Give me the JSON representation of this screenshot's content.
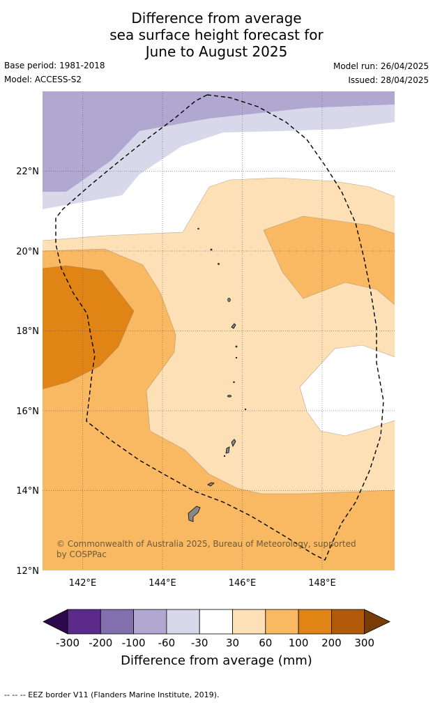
{
  "title_lines": [
    "Difference from average",
    "sea surface height forecast for",
    "June to August 2025"
  ],
  "meta": {
    "base_period": "Base period: 1981-2018",
    "model": "Model: ACCESS-S2",
    "model_run": "Model run: 26/04/2025",
    "issued": "Issued: 28/04/2025"
  },
  "map": {
    "region": "Northern Mariana Islands and Guam",
    "lon_range": [
      141,
      149.8
    ],
    "lat_range": [
      12,
      24
    ],
    "x_ticks": [
      "142°E",
      "144°E",
      "146°E",
      "148°E"
    ],
    "y_ticks": [
      "22°N",
      "20°N",
      "18°N",
      "16°N",
      "14°N",
      "12°N"
    ],
    "copyright": [
      "© Commonwealth of Australia 2025, Bureau of Meteorology, supported",
      "by COSPPac"
    ]
  },
  "colorbar": {
    "labels": [
      "-300",
      "-200",
      "-100",
      "-60",
      "-30",
      "30",
      "60",
      "100",
      "200",
      "300"
    ],
    "colors": [
      "#2d0a4e",
      "#5b2a8a",
      "#8170ad",
      "#b0a8d0",
      "#d8d8ea",
      "#ffffff",
      "#fde0b5",
      "#f9b862",
      "#e08416",
      "#b05a0a",
      "#7a3c07"
    ],
    "title": "Difference from average (mm)"
  },
  "footer": "-- -- -- EEZ border V11 (Flanders Marine Institute, 2019)."
}
